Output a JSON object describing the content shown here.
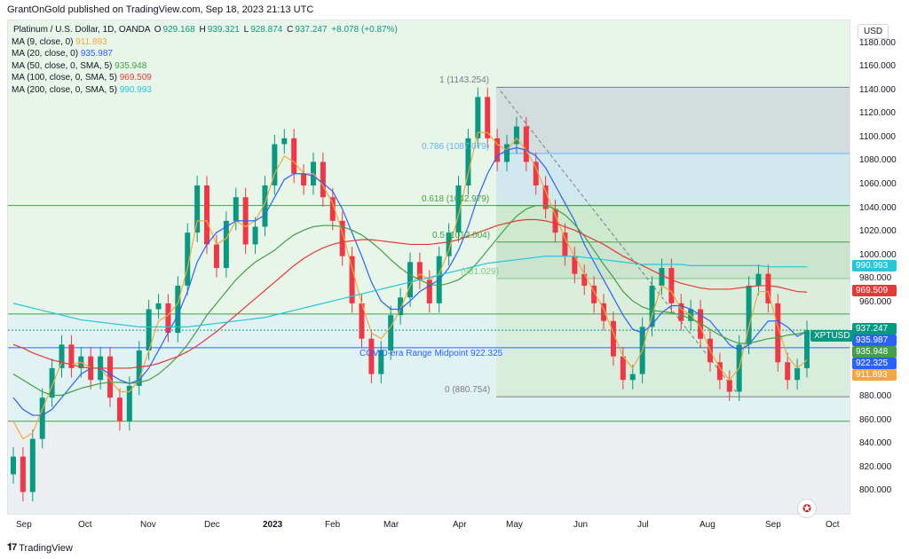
{
  "topline": "GrantOnGold published on TradingView.com, Sep 18, 2023 21:13 UTC",
  "legend": {
    "title": "Platinum / U.S. Dollar, 1D, OANDA",
    "ohlc": {
      "o_label": "O",
      "o": "929.168",
      "h_label": "H",
      "h": "939.321",
      "l_label": "L",
      "l": "928.874",
      "c_label": "C",
      "c": "937.247",
      "chg": "+8.078 (+0.87%)"
    },
    "ma": [
      {
        "label": "MA (9, close, 0)",
        "value": "911.893",
        "color": "#f2a83b"
      },
      {
        "label": "MA (20, close, 0)",
        "value": "935.987",
        "color": "#2962ff"
      },
      {
        "label": "MA (50, close, 0, SMA, 5)",
        "value": "935.948",
        "color": "#43a047"
      },
      {
        "label": "MA (100, close, 0, SMA, 5)",
        "value": "969.509",
        "color": "#e53935"
      },
      {
        "label": "MA (200, close, 0, SMA, 5)",
        "value": "990.993",
        "color": "#26c6da"
      }
    ]
  },
  "currency": "USD",
  "symbol_flag": "XPTUSD",
  "price_flags": [
    {
      "value": "990.993",
      "color": "#26c6da",
      "price": 990.993
    },
    {
      "value": "969.509",
      "color": "#e53935",
      "price": 969.509
    },
    {
      "value": "937.247",
      "color": "#089981",
      "price": 937.247
    },
    {
      "value": "935.987",
      "color": "#2962ff",
      "price": 935.987
    },
    {
      "value": "935.948",
      "color": "#43a047",
      "price": 935.948
    },
    {
      "value": "922.325",
      "color": "#2962ff",
      "price": 922.325
    },
    {
      "value": "911.893",
      "color": "#f2a83b",
      "price": 911.893
    }
  ],
  "annotations": {
    "midpoint": "COVID-era Range Midpoint 922.325",
    "fib": [
      {
        "label": "1 (1143.254)",
        "level": 1143.254,
        "color": "#787b86"
      },
      {
        "label": "0.786 (1087.079)",
        "level": 1087.079,
        "color": "#64b5f6"
      },
      {
        "label": "0.618 (1042.979)",
        "level": 1042.979,
        "color": "#43a047"
      },
      {
        "label": "0.5 (1012.004)",
        "level": 1012.004,
        "color": "#43a047"
      },
      {
        "label": "(981.029)",
        "level": 981.029,
        "color": "#81c784"
      },
      {
        "label": "0 (880.754)",
        "level": 880.754,
        "color": "#787b86"
      }
    ]
  },
  "footer": {
    "brand": "TradingView"
  },
  "chart_data": {
    "type": "line",
    "title": "Platinum / U.S. Dollar, 1D, OANDA",
    "xlabel": "",
    "ylabel": "",
    "ylim": [
      780,
      1200
    ],
    "y_ticks": [
      "1180.000",
      "1160.000",
      "1140.000",
      "1120.000",
      "1100.000",
      "1080.000",
      "1060.000",
      "1040.000",
      "1020.000",
      "1000.000",
      "980.000",
      "960.000",
      "880.000",
      "860.000",
      "840.000",
      "820.000",
      "800.000"
    ],
    "x_ticks": [
      "Sep",
      "Oct",
      "Nov",
      "Dec",
      "2023",
      "Feb",
      "Mar",
      "Apr",
      "May",
      "Jun",
      "Jul",
      "Aug",
      "Sep",
      "Oct"
    ],
    "grid": false,
    "legend": "top-left",
    "series": [
      {
        "name": "XPTUSD",
        "color": "#089981",
        "values": [
          830,
          800,
          845,
          880,
          905,
          925,
          905,
          915,
          895,
          915,
          880,
          860,
          890,
          920,
          955,
          960,
          935,
          975,
          1020,
          1060,
          1010,
          990,
          1030,
          1050,
          1010,
          1025,
          1060,
          1095,
          1100,
          1070,
          1060,
          1080,
          1050,
          1030,
          1000,
          960,
          930,
          900,
          920,
          950,
          965,
          995,
          980,
          960,
          1000,
          1020,
          1060,
          1100,
          1135,
          1100,
          1080,
          1095,
          1110,
          1080,
          1060,
          1040,
          1020,
          1000,
          985,
          975,
          960,
          945,
          915,
          895,
          900,
          940,
          975,
          990,
          960,
          945,
          955,
          930,
          910,
          895,
          885,
          925,
          975,
          985,
          960,
          910,
          895,
          905,
          937.247
        ]
      },
      {
        "name": "MA (9, close, 0)",
        "color": "#f2a83b",
        "values": [
          860,
          845,
          850,
          870,
          890,
          910,
          908,
          910,
          905,
          905,
          895,
          885,
          885,
          895,
          920,
          945,
          950,
          960,
          990,
          1030,
          1030,
          1010,
          1015,
          1030,
          1025,
          1030,
          1045,
          1070,
          1085,
          1080,
          1070,
          1070,
          1060,
          1045,
          1020,
          990,
          960,
          935,
          930,
          940,
          955,
          975,
          985,
          980,
          985,
          1005,
          1035,
          1070,
          1105,
          1105,
          1095,
          1090,
          1100,
          1090,
          1075,
          1055,
          1035,
          1015,
          1000,
          985,
          970,
          955,
          935,
          915,
          905,
          920,
          950,
          975,
          970,
          955,
          950,
          940,
          920,
          905,
          895,
          905,
          940,
          970,
          970,
          940,
          915,
          905,
          911.893
        ]
      },
      {
        "name": "MA (20, close, 0)",
        "color": "#2962ff",
        "values": [
          880,
          870,
          865,
          865,
          870,
          880,
          890,
          900,
          905,
          905,
          900,
          895,
          892,
          895,
          905,
          920,
          935,
          950,
          970,
          995,
          1010,
          1020,
          1025,
          1030,
          1030,
          1030,
          1035,
          1050,
          1065,
          1070,
          1070,
          1068,
          1062,
          1055,
          1040,
          1020,
          1000,
          978,
          962,
          955,
          955,
          962,
          970,
          975,
          980,
          990,
          1005,
          1025,
          1050,
          1070,
          1085,
          1090,
          1092,
          1090,
          1085,
          1075,
          1060,
          1045,
          1030,
          1010,
          995,
          980,
          965,
          950,
          938,
          935,
          942,
          952,
          958,
          958,
          955,
          950,
          945,
          935,
          925,
          920,
          925,
          935,
          945,
          945,
          940,
          932,
          935.987
        ]
      },
      {
        "name": "MA (50, close, 0, SMA, 5)",
        "color": "#43a047",
        "values": [
          900,
          895,
          890,
          885,
          882,
          882,
          885,
          888,
          890,
          892,
          893,
          893,
          892,
          893,
          895,
          900,
          907,
          915,
          925,
          937,
          950,
          960,
          970,
          980,
          988,
          995,
          1000,
          1005,
          1012,
          1018,
          1022,
          1025,
          1026,
          1026,
          1025,
          1022,
          1018,
          1012,
          1005,
          997,
          990,
          984,
          980,
          976,
          975,
          977,
          980,
          986,
          995,
          1005,
          1015,
          1025,
          1034,
          1040,
          1043,
          1043,
          1040,
          1035,
          1027,
          1017,
          1005,
          993,
          982,
          970,
          962,
          957,
          954,
          953,
          952,
          950,
          947,
          943,
          938,
          933,
          929,
          926,
          926,
          928,
          930,
          931,
          933,
          934,
          935.948
        ]
      },
      {
        "name": "MA (100, close, 0, SMA, 5)",
        "color": "#e53935",
        "values": [
          925,
          922,
          918,
          915,
          912,
          910,
          908,
          906,
          905,
          905,
          905,
          905,
          905,
          906,
          907,
          909,
          912,
          915,
          919,
          924,
          930,
          936,
          943,
          950,
          957,
          964,
          971,
          978,
          985,
          992,
          998,
          1003,
          1007,
          1010,
          1012,
          1013,
          1014,
          1014,
          1013,
          1012,
          1011,
          1010,
          1010,
          1010,
          1011,
          1012,
          1014,
          1017,
          1020,
          1023,
          1026,
          1028,
          1030,
          1031,
          1031,
          1030,
          1028,
          1025,
          1022,
          1018,
          1014,
          1010,
          1005,
          1000,
          996,
          992,
          988,
          984,
          980,
          977,
          975,
          973,
          972,
          972,
          972,
          973,
          974,
          975,
          975,
          974,
          972,
          970,
          969.509
        ]
      },
      {
        "name": "MA (200, close, 0, SMA, 5)",
        "color": "#26c6da",
        "values": [
          960,
          958,
          956,
          954,
          952,
          950,
          948,
          946,
          945,
          944,
          943,
          942,
          941,
          940,
          940,
          940,
          940,
          940,
          940,
          941,
          942,
          943,
          944,
          945,
          946,
          947,
          948,
          950,
          952,
          954,
          956,
          958,
          960,
          962,
          964,
          966,
          968,
          970,
          972,
          974,
          976,
          978,
          980,
          982,
          984,
          986,
          988,
          990,
          992,
          994,
          995,
          996,
          997,
          998,
          999,
          1000,
          1000,
          1000,
          1000,
          999,
          998,
          997,
          996,
          995,
          994,
          993,
          993,
          993,
          993,
          993,
          992,
          992,
          992,
          992,
          992,
          992,
          992,
          992,
          991,
          991,
          991,
          991,
          990.993
        ]
      }
    ],
    "horizontal_levels": [
      {
        "label": "COVID-era Range Midpoint 922.325",
        "value": 922.325
      },
      {
        "value": 951
      }
    ]
  }
}
